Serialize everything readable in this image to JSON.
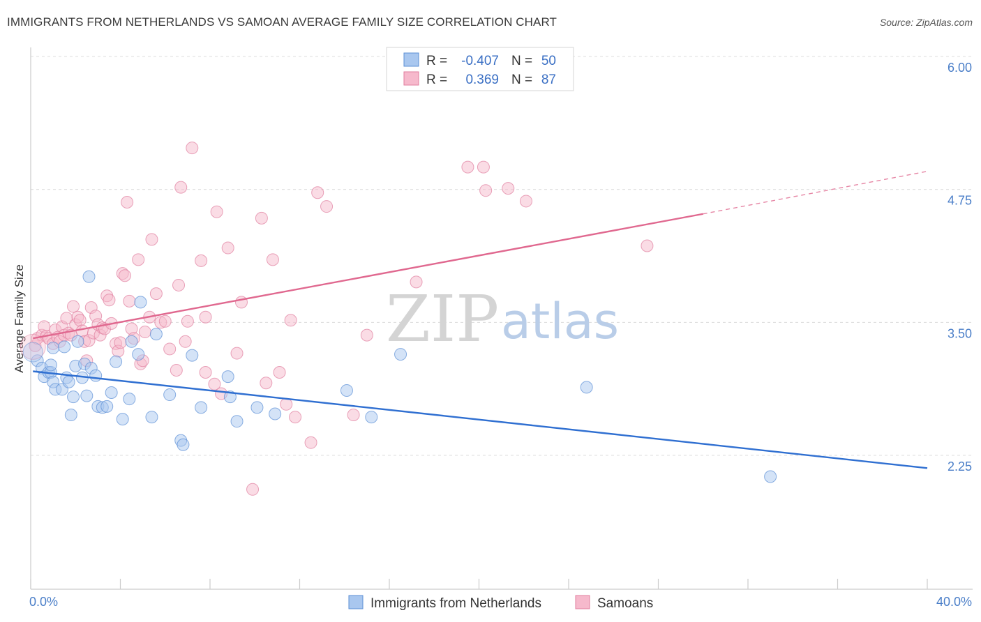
{
  "title": "IMMIGRANTS FROM NETHERLANDS VS SAMOAN AVERAGE FAMILY SIZE CORRELATION CHART",
  "source": "Source: ZipAtlas.com",
  "watermark": {
    "zip": "ZIP",
    "atlas": "atlas"
  },
  "legend": {
    "rows": [
      {
        "r_label": "R =",
        "r_value": "-0.407",
        "n_label": "N =",
        "n_value": "50",
        "color": "#a9c7ef",
        "stroke": "#5b8fd6"
      },
      {
        "r_label": "R =",
        "r_value": "0.369",
        "n_label": "N =",
        "n_value": "87",
        "color": "#f6b9cc",
        "stroke": "#e07d9e"
      }
    ]
  },
  "chart_data": {
    "type": "scatter",
    "title": "IMMIGRANTS FROM NETHERLANDS VS SAMOAN AVERAGE FAMILY SIZE CORRELATION CHART",
    "xlabel": "",
    "ylabel": "Average Family Size",
    "xlim": [
      0,
      40
    ],
    "ylim": [
      1.25,
      6.1
    ],
    "x_tick_labels": [
      "0.0%",
      "40.0%"
    ],
    "y_ticks": [
      2.25,
      3.5,
      4.75,
      6.0
    ],
    "y_tick_labels": [
      "2.25",
      "3.50",
      "4.75",
      "6.00"
    ],
    "grid": "horizontal dashed",
    "series": [
      {
        "name": "Immigrants from Netherlands",
        "color": "#a9c7ef",
        "stroke": "#5b8fd6",
        "line_color": "#2f6fd1",
        "trend": {
          "x": [
            0.1,
            40
          ],
          "y": [
            3.04,
            2.13
          ]
        },
        "points": [
          [
            0.3,
            3.14
          ],
          [
            0.5,
            3.07
          ],
          [
            0.6,
            2.99
          ],
          [
            0.8,
            3.03
          ],
          [
            0.9,
            3.03
          ],
          [
            0.9,
            3.1
          ],
          [
            1.0,
            2.94
          ],
          [
            1.1,
            2.87
          ],
          [
            1.0,
            3.26
          ],
          [
            1.4,
            2.87
          ],
          [
            1.5,
            3.27
          ],
          [
            1.6,
            2.98
          ],
          [
            1.7,
            2.94
          ],
          [
            1.8,
            2.63
          ],
          [
            1.9,
            2.8
          ],
          [
            2.0,
            3.09
          ],
          [
            2.1,
            3.32
          ],
          [
            2.3,
            2.98
          ],
          [
            2.4,
            3.11
          ],
          [
            2.5,
            2.81
          ],
          [
            2.6,
            3.93
          ],
          [
            2.7,
            3.07
          ],
          [
            2.9,
            3.0
          ],
          [
            3.0,
            2.71
          ],
          [
            3.2,
            2.7
          ],
          [
            3.4,
            2.71
          ],
          [
            3.6,
            2.84
          ],
          [
            3.8,
            3.13
          ],
          [
            4.1,
            2.59
          ],
          [
            4.4,
            2.78
          ],
          [
            4.5,
            3.32
          ],
          [
            4.8,
            3.2
          ],
          [
            4.9,
            3.69
          ],
          [
            5.4,
            2.61
          ],
          [
            5.6,
            3.39
          ],
          [
            6.2,
            2.82
          ],
          [
            6.7,
            2.39
          ],
          [
            6.8,
            2.35
          ],
          [
            7.6,
            2.7
          ],
          [
            8.8,
            2.99
          ],
          [
            8.9,
            2.8
          ],
          [
            9.2,
            2.57
          ],
          [
            10.1,
            2.7
          ],
          [
            10.9,
            2.64
          ],
          [
            14.1,
            2.86
          ],
          [
            15.2,
            2.61
          ],
          [
            16.5,
            3.2
          ],
          [
            24.8,
            2.89
          ],
          [
            33.0,
            2.05
          ],
          [
            7.2,
            3.19
          ]
        ]
      },
      {
        "name": "Samoans",
        "color": "#f6b9cc",
        "stroke": "#e07d9e",
        "line_color": "#e0688f",
        "trend": {
          "x": [
            0.1,
            30.0
          ],
          "y": [
            3.35,
            4.52
          ]
        },
        "trend_dashed": {
          "x": [
            30.0,
            40
          ],
          "y": [
            4.52,
            4.92
          ]
        },
        "points": [
          [
            0.2,
            3.28
          ],
          [
            0.3,
            3.35
          ],
          [
            0.5,
            3.38
          ],
          [
            0.6,
            3.46
          ],
          [
            0.7,
            3.37
          ],
          [
            0.8,
            3.35
          ],
          [
            1.0,
            3.3
          ],
          [
            1.1,
            3.43
          ],
          [
            1.2,
            3.36
          ],
          [
            1.3,
            3.32
          ],
          [
            1.4,
            3.46
          ],
          [
            1.5,
            3.38
          ],
          [
            1.6,
            3.54
          ],
          [
            1.7,
            3.4
          ],
          [
            1.8,
            3.38
          ],
          [
            1.9,
            3.65
          ],
          [
            2.0,
            3.48
          ],
          [
            2.1,
            3.55
          ],
          [
            2.2,
            3.52
          ],
          [
            2.3,
            3.42
          ],
          [
            2.4,
            3.32
          ],
          [
            2.5,
            3.14
          ],
          [
            2.6,
            3.33
          ],
          [
            2.7,
            3.64
          ],
          [
            2.8,
            3.4
          ],
          [
            2.9,
            3.56
          ],
          [
            3.0,
            3.48
          ],
          [
            3.1,
            3.38
          ],
          [
            3.2,
            3.45
          ],
          [
            3.3,
            3.44
          ],
          [
            3.4,
            3.75
          ],
          [
            3.5,
            3.71
          ],
          [
            3.6,
            3.49
          ],
          [
            3.8,
            3.3
          ],
          [
            3.9,
            3.23
          ],
          [
            4.0,
            3.31
          ],
          [
            4.1,
            3.96
          ],
          [
            4.2,
            3.94
          ],
          [
            4.3,
            4.63
          ],
          [
            4.4,
            3.7
          ],
          [
            4.5,
            3.44
          ],
          [
            4.6,
            3.35
          ],
          [
            4.8,
            4.09
          ],
          [
            4.9,
            3.11
          ],
          [
            5.0,
            3.14
          ],
          [
            5.1,
            3.41
          ],
          [
            5.3,
            3.55
          ],
          [
            5.4,
            4.28
          ],
          [
            5.6,
            3.77
          ],
          [
            5.8,
            3.5
          ],
          [
            6.0,
            3.51
          ],
          [
            6.2,
            3.25
          ],
          [
            6.5,
            3.05
          ],
          [
            6.6,
            3.85
          ],
          [
            6.7,
            4.77
          ],
          [
            6.9,
            3.32
          ],
          [
            7.0,
            3.51
          ],
          [
            7.2,
            5.14
          ],
          [
            7.6,
            4.08
          ],
          [
            7.8,
            3.55
          ],
          [
            7.8,
            3.03
          ],
          [
            8.2,
            2.92
          ],
          [
            8.3,
            4.54
          ],
          [
            8.5,
            2.83
          ],
          [
            8.8,
            4.2
          ],
          [
            9.2,
            3.21
          ],
          [
            9.4,
            3.69
          ],
          [
            10.3,
            4.48
          ],
          [
            10.5,
            2.93
          ],
          [
            10.8,
            4.09
          ],
          [
            11.1,
            3.03
          ],
          [
            11.4,
            2.73
          ],
          [
            11.6,
            3.52
          ],
          [
            11.8,
            2.61
          ],
          [
            12.5,
            2.37
          ],
          [
            12.8,
            4.72
          ],
          [
            13.2,
            4.59
          ],
          [
            14.4,
            2.63
          ],
          [
            15.0,
            3.38
          ],
          [
            17.2,
            3.88
          ],
          [
            19.5,
            4.96
          ],
          [
            20.2,
            4.96
          ],
          [
            20.3,
            4.74
          ],
          [
            21.3,
            4.76
          ],
          [
            22.1,
            4.64
          ],
          [
            27.5,
            4.22
          ],
          [
            9.9,
            1.93
          ]
        ]
      }
    ],
    "bottom_legend": [
      "Immigrants from Netherlands",
      "Samoans"
    ]
  }
}
